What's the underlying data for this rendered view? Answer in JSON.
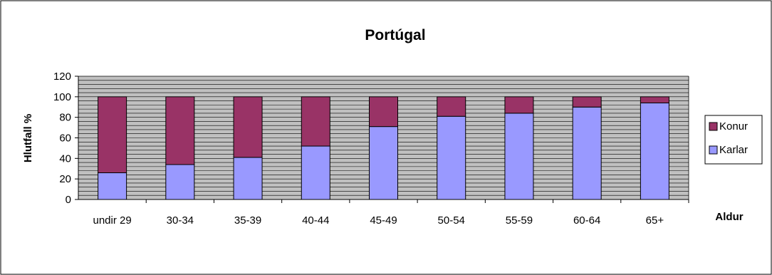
{
  "chart_data": {
    "type": "bar",
    "stacked": true,
    "title": "Portúgal",
    "xlabel": "Aldur",
    "ylabel": "Hlutfall %",
    "categories": [
      "undir 29",
      "30-34",
      "35-39",
      "40-44",
      "45-49",
      "50-54",
      "55-59",
      "60-64",
      "65+"
    ],
    "series": [
      {
        "name": "Karlar",
        "values": [
          26,
          34,
          41,
          52,
          71,
          81,
          84,
          90,
          94
        ]
      },
      {
        "name": "Konur",
        "values": [
          74,
          66,
          59,
          48,
          29,
          19,
          16,
          10,
          6
        ]
      }
    ],
    "ylim": [
      0,
      120
    ],
    "yticks": [
      "0",
      "20",
      "40",
      "60",
      "80",
      "100",
      "120"
    ],
    "grid": true,
    "legend": {
      "position": "right",
      "entries": [
        "Konur",
        "Karlar"
      ]
    },
    "colors": {
      "Karlar": "#9999ff",
      "Konur": "#993366",
      "plot_background": "#c0c0c0",
      "gridline": "#000000"
    }
  }
}
